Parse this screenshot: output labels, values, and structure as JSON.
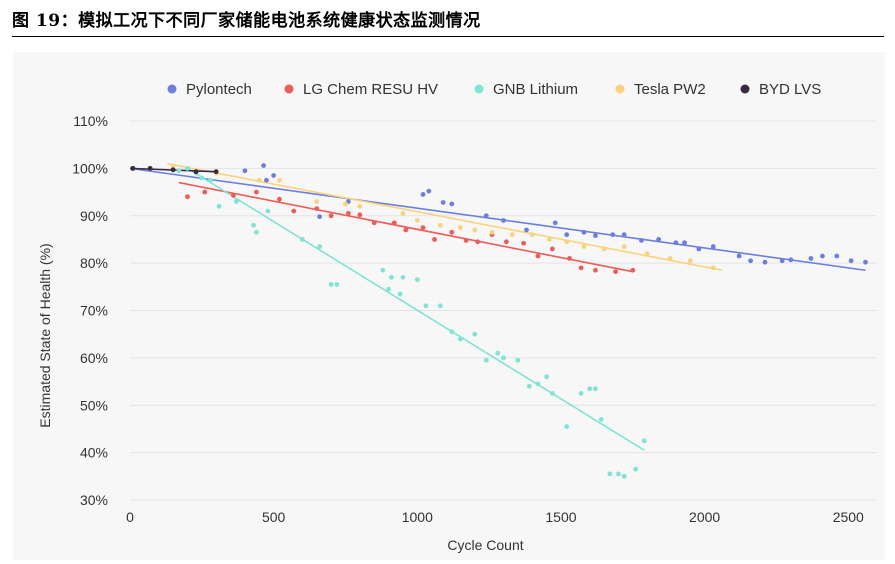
{
  "figure_title": "图 19：模拟工况下不同厂家储能电池系统健康状态监测情况",
  "chart_data": {
    "type": "scatter",
    "title": "",
    "xlabel": "Cycle Count",
    "ylabel": "Estimated State of Health (%)",
    "xlim": [
      0,
      2600
    ],
    "ylim": [
      30,
      110
    ],
    "x_ticks": [
      0,
      500,
      1000,
      1500,
      2000,
      2500
    ],
    "x_tick_labels": [
      "0",
      "500",
      "1000",
      "1500",
      "2000",
      "2500"
    ],
    "y_ticks": [
      30,
      40,
      50,
      60,
      70,
      80,
      90,
      100,
      110
    ],
    "y_tick_labels": [
      "30%",
      "40%",
      "50%",
      "60%",
      "70%",
      "80%",
      "90%",
      "100%",
      "110%"
    ],
    "grid": "horizontal",
    "legend": "top-center",
    "series": [
      {
        "name": "Pylontech",
        "color": "#6b7fe3",
        "points": [
          [
            10,
            100
          ],
          [
            400,
            99.5
          ],
          [
            465,
            100.6
          ],
          [
            475,
            97.5
          ],
          [
            500,
            98.5
          ],
          [
            660,
            89.8
          ],
          [
            760,
            93
          ],
          [
            1020,
            94.5
          ],
          [
            1040,
            95.2
          ],
          [
            1090,
            92.8
          ],
          [
            1120,
            92.5
          ],
          [
            1240,
            90
          ],
          [
            1300,
            89
          ],
          [
            1380,
            87
          ],
          [
            1480,
            88.5
          ],
          [
            1520,
            86
          ],
          [
            1580,
            86.5
          ],
          [
            1620,
            85.8
          ],
          [
            1680,
            86
          ],
          [
            1720,
            86
          ],
          [
            1780,
            84.8
          ],
          [
            1840,
            85
          ],
          [
            1900,
            84.3
          ],
          [
            1930,
            84.3
          ],
          [
            1980,
            83
          ],
          [
            2030,
            83.5
          ],
          [
            2120,
            81.5
          ],
          [
            2160,
            80.5
          ],
          [
            2210,
            80.2
          ],
          [
            2270,
            80.5
          ],
          [
            2300,
            80.7
          ],
          [
            2370,
            81
          ],
          [
            2410,
            81.5
          ],
          [
            2460,
            81.5
          ],
          [
            2510,
            80.5
          ],
          [
            2560,
            80.2
          ]
        ],
        "trend": [
          [
            0,
            100
          ],
          [
            2560,
            78.5
          ]
        ]
      },
      {
        "name": "LG Chem RESU HV",
        "color": "#ef5b56",
        "points": [
          [
            200,
            94
          ],
          [
            260,
            95
          ],
          [
            360,
            94.3
          ],
          [
            440,
            95
          ],
          [
            520,
            93.5
          ],
          [
            570,
            91
          ],
          [
            650,
            91.5
          ],
          [
            700,
            90
          ],
          [
            760,
            90.5
          ],
          [
            800,
            90.2
          ],
          [
            850,
            88.5
          ],
          [
            920,
            88.5
          ],
          [
            960,
            87
          ],
          [
            1020,
            87.5
          ],
          [
            1060,
            85
          ],
          [
            1120,
            86.5
          ],
          [
            1170,
            84.8
          ],
          [
            1210,
            84.5
          ],
          [
            1260,
            86
          ],
          [
            1310,
            84.5
          ],
          [
            1370,
            84.2
          ],
          [
            1420,
            81.5
          ],
          [
            1470,
            83
          ],
          [
            1530,
            81
          ],
          [
            1570,
            79
          ],
          [
            1620,
            78.5
          ],
          [
            1690,
            78.2
          ],
          [
            1750,
            78.5
          ]
        ],
        "trend": [
          [
            170,
            97
          ],
          [
            1750,
            78.2
          ]
        ]
      },
      {
        "name": "GNB Lithium",
        "color": "#7fe3d6",
        "points": [
          [
            170,
            99.5
          ],
          [
            200,
            100
          ],
          [
            230,
            99
          ],
          [
            250,
            98
          ],
          [
            280,
            97.5
          ],
          [
            310,
            92
          ],
          [
            370,
            93
          ],
          [
            430,
            88
          ],
          [
            440,
            86.5
          ],
          [
            480,
            91
          ],
          [
            600,
            85
          ],
          [
            660,
            83.5
          ],
          [
            700,
            75.5
          ],
          [
            720,
            75.5
          ],
          [
            880,
            78.5
          ],
          [
            900,
            74.5
          ],
          [
            910,
            77
          ],
          [
            940,
            73.5
          ],
          [
            950,
            77
          ],
          [
            1000,
            76.5
          ],
          [
            1030,
            71
          ],
          [
            1080,
            71
          ],
          [
            1120,
            65.5
          ],
          [
            1150,
            64
          ],
          [
            1200,
            65
          ],
          [
            1240,
            59.5
          ],
          [
            1280,
            61
          ],
          [
            1300,
            60
          ],
          [
            1350,
            59.5
          ],
          [
            1390,
            54
          ],
          [
            1420,
            54.5
          ],
          [
            1450,
            56
          ],
          [
            1470,
            52.5
          ],
          [
            1520,
            45.5
          ],
          [
            1570,
            52.5
          ],
          [
            1600,
            53.5
          ],
          [
            1620,
            53.5
          ],
          [
            1640,
            47
          ],
          [
            1670,
            35.5
          ],
          [
            1700,
            35.5
          ],
          [
            1720,
            35
          ],
          [
            1760,
            36.5
          ],
          [
            1790,
            42.5
          ]
        ],
        "trend": [
          [
            200,
            100
          ],
          [
            1790,
            40.5
          ]
        ]
      },
      {
        "name": "Tesla PW2",
        "color": "#f9d37a",
        "points": [
          [
            150,
            100.5
          ],
          [
            300,
            99
          ],
          [
            450,
            97.5
          ],
          [
            520,
            97.5
          ],
          [
            650,
            93
          ],
          [
            750,
            92.5
          ],
          [
            800,
            92
          ],
          [
            950,
            90.5
          ],
          [
            1000,
            89
          ],
          [
            1080,
            88
          ],
          [
            1150,
            87.5
          ],
          [
            1200,
            87
          ],
          [
            1260,
            86.5
          ],
          [
            1330,
            86
          ],
          [
            1400,
            86
          ],
          [
            1460,
            85
          ],
          [
            1520,
            84.5
          ],
          [
            1580,
            83.5
          ],
          [
            1650,
            83
          ],
          [
            1720,
            83.5
          ],
          [
            1800,
            82
          ],
          [
            1880,
            81
          ],
          [
            1950,
            80.5
          ],
          [
            2030,
            79
          ]
        ],
        "trend": [
          [
            130,
            101
          ],
          [
            2060,
            78.5
          ]
        ]
      },
      {
        "name": "BYD LVS",
        "color": "#3a2840",
        "points": [
          [
            10,
            100
          ],
          [
            70,
            100
          ],
          [
            150,
            99.7
          ],
          [
            230,
            99.3
          ],
          [
            300,
            99.3
          ]
        ],
        "trend": [
          [
            0,
            100
          ],
          [
            300,
            99.3
          ]
        ]
      }
    ]
  }
}
